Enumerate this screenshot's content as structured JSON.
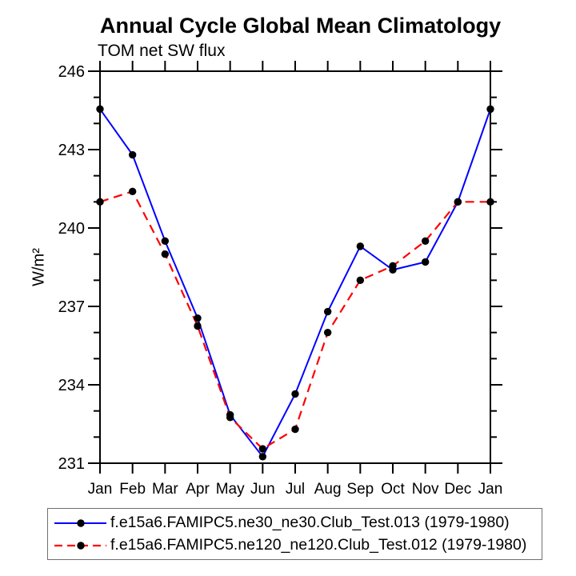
{
  "chart_data": {
    "type": "line",
    "title": "Annual Cycle Global Mean Climatology",
    "subtitle": "TOM net SW flux",
    "ylabel": "W/m²",
    "xlabel": "",
    "categories": [
      "Jan",
      "Feb",
      "Mar",
      "Apr",
      "May",
      "Jun",
      "Jul",
      "Aug",
      "Sep",
      "Oct",
      "Nov",
      "Dec",
      "Jan"
    ],
    "ylim": [
      231,
      246
    ],
    "yticks_major": [
      231,
      234,
      237,
      240,
      243,
      246
    ],
    "ytick_minor_step": 1,
    "grid": false,
    "frame": "box",
    "legend_position": "bottom",
    "marker": "filled-circle",
    "marker_color": "#000000",
    "series": [
      {
        "name": "f.e15a6.FAMIPC5.ne30_ne30.Club_Test.013 (1979-1980)",
        "color": "#0000ff",
        "line_style": "solid",
        "values": [
          244.55,
          242.8,
          239.5,
          236.55,
          232.85,
          231.25,
          233.65,
          236.8,
          239.3,
          238.4,
          238.7,
          241.0,
          244.55
        ]
      },
      {
        "name": "f.e15a6.FAMIPC5.ne120_ne120.Club_Test.012 (1979-1980)",
        "color": "#ff0000",
        "line_style": "dashed",
        "values": [
          241.0,
          241.4,
          239.0,
          236.25,
          232.75,
          231.55,
          232.3,
          236.0,
          238.0,
          238.55,
          239.5,
          241.0,
          241.0
        ]
      }
    ]
  }
}
